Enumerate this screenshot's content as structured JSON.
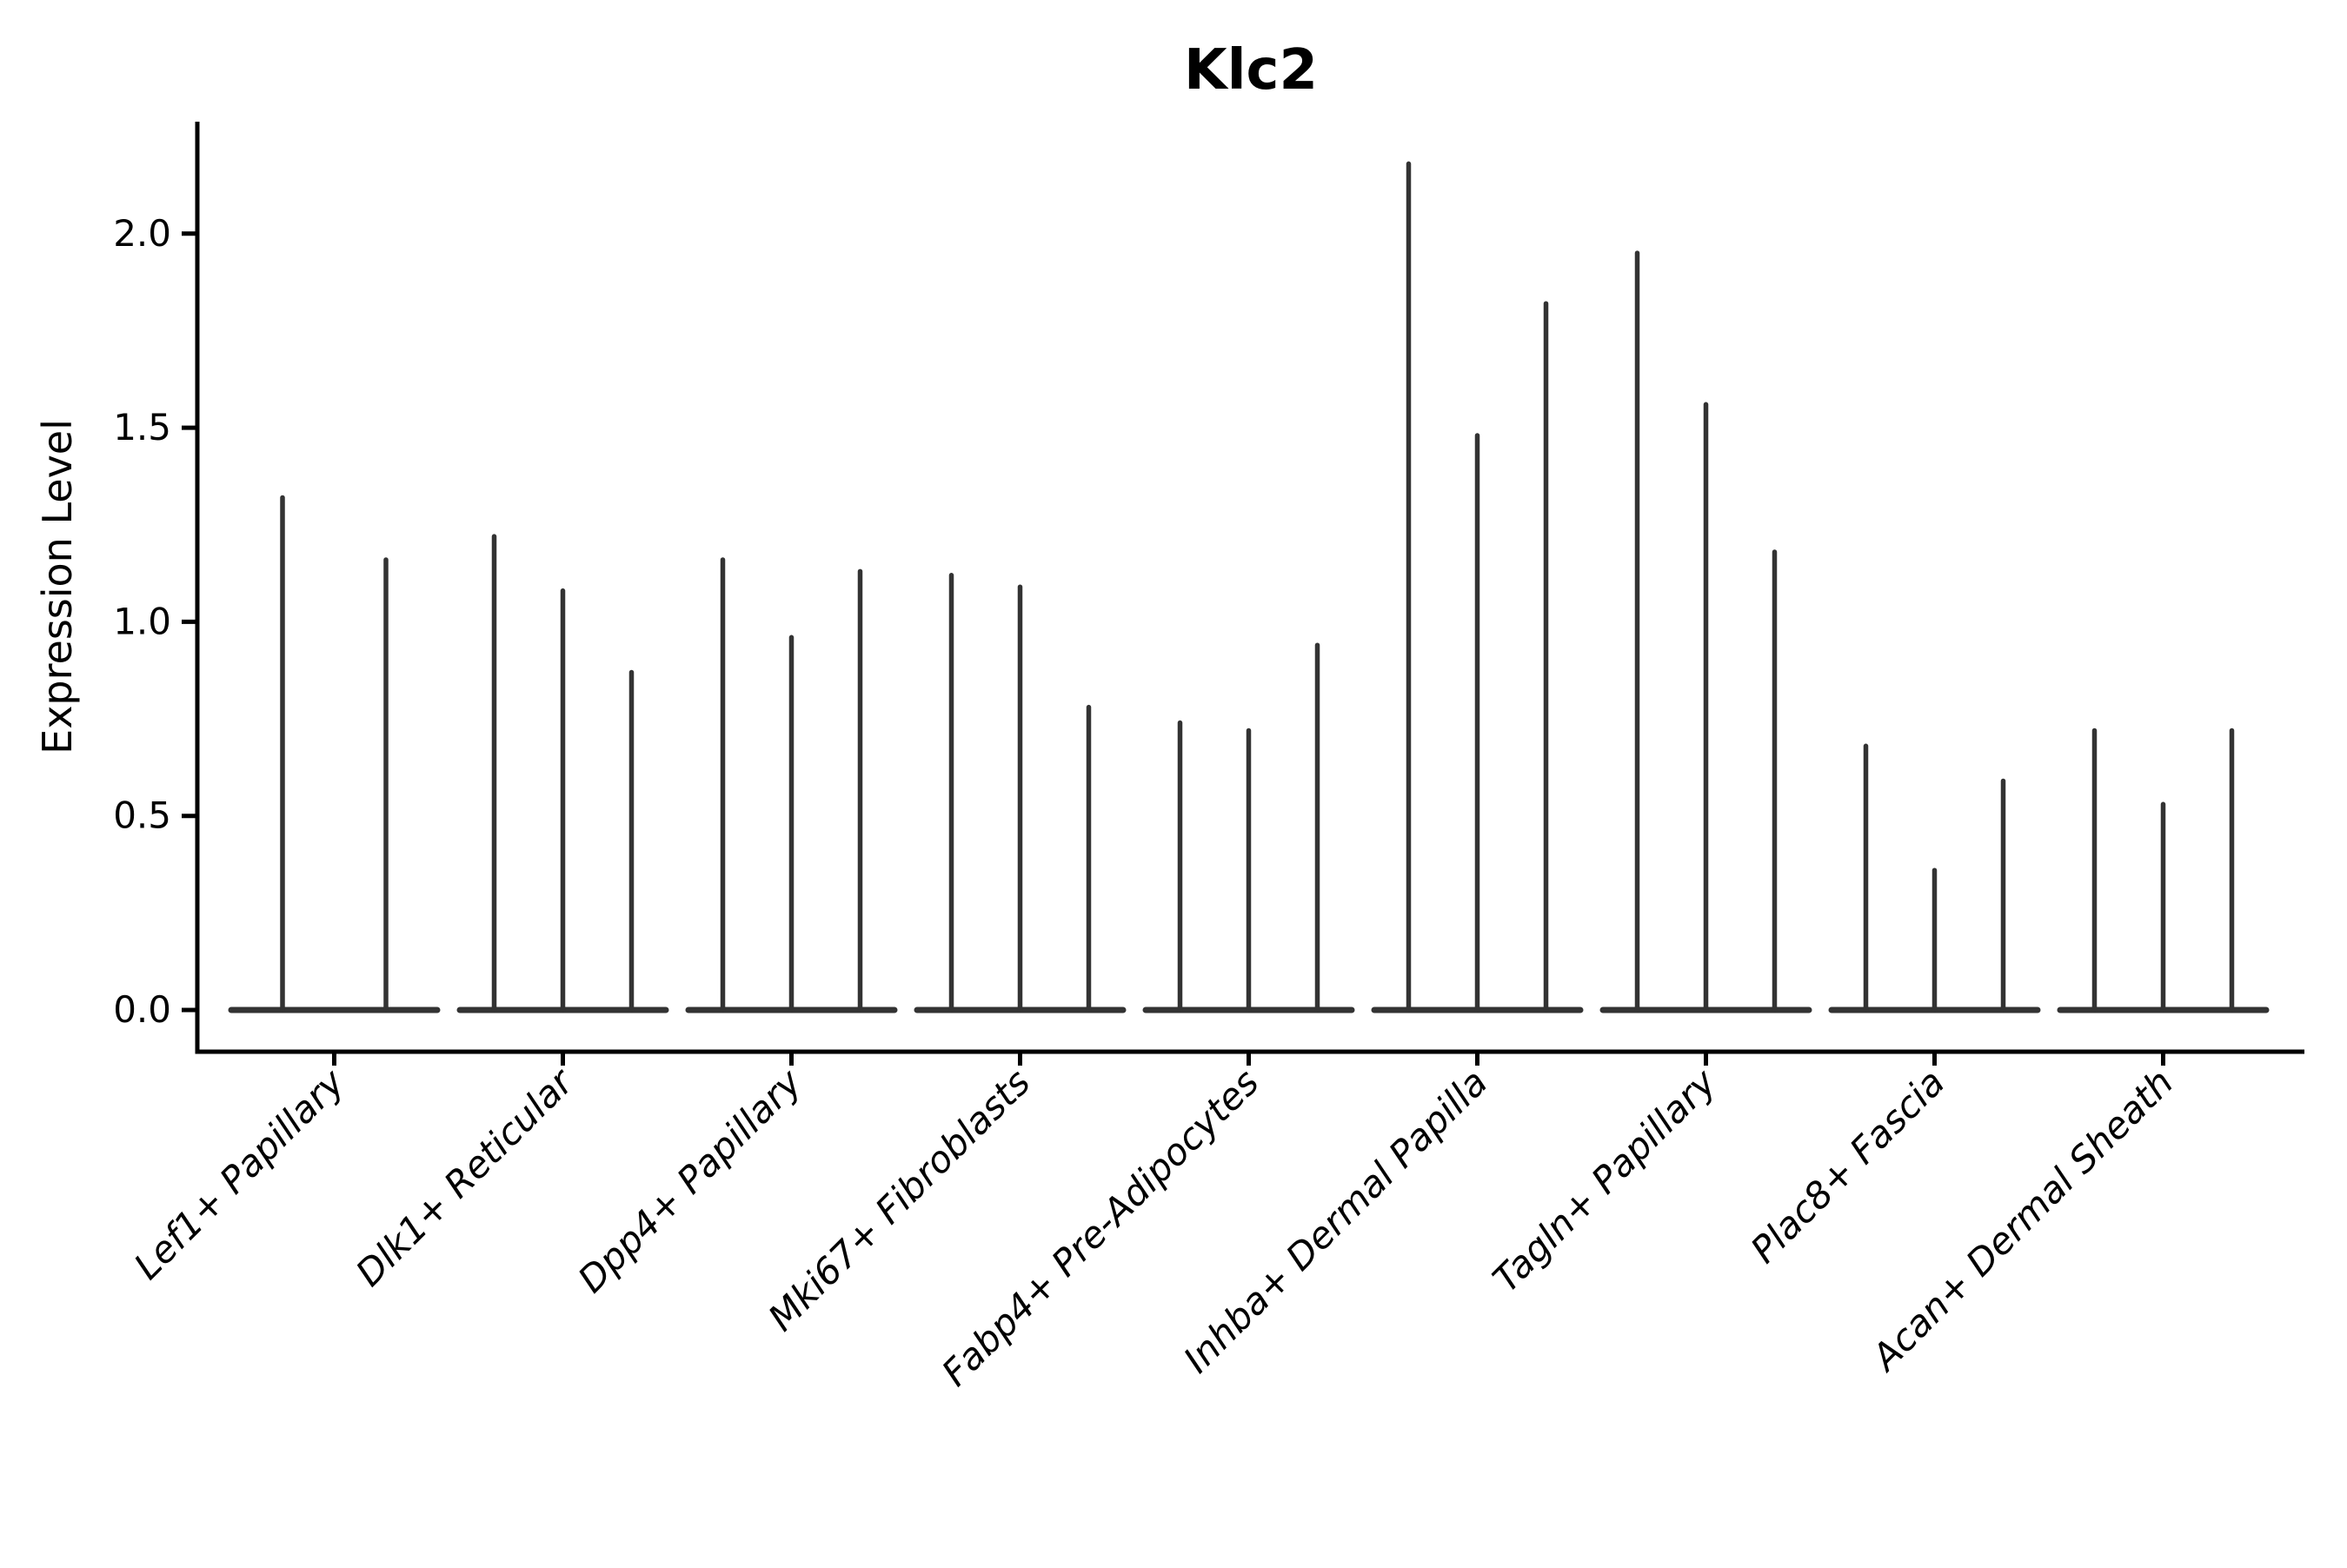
{
  "title": "Klc2",
  "chart_data": {
    "type": "violin",
    "render_style": "spike-violin (sparse expression: flat body at 0 with thin spike to max)",
    "title": "Klc2",
    "xlabel": "",
    "ylabel": "Expression Level",
    "ylim": [
      -0.11,
      2.29
    ],
    "yticks": [
      0.0,
      0.5,
      1.0,
      1.5,
      2.0
    ],
    "ytick_labels": [
      "0.0",
      "0.5",
      "1.0",
      "1.5",
      "2.0"
    ],
    "grid": false,
    "legend": "none",
    "categories": [
      "Lef1+ Papillary",
      "Dlk1+ Reticular",
      "Dpp4+ Papillary",
      "Mki67+ Fibroblasts",
      "Fabp4+ Pre-Adipocytes",
      "Inhba+ Dermal Papilla",
      "Tagln+ Papillary",
      "Plac8+ Fascia",
      "Acan+ Dermal Sheath"
    ],
    "groups": [
      {
        "category": "Lef1+ Papillary",
        "spike_max_values": [
          1.32,
          1.16
        ]
      },
      {
        "category": "Dlk1+ Reticular",
        "spike_max_values": [
          1.22,
          1.08,
          0.87
        ]
      },
      {
        "category": "Dpp4+ Papillary",
        "spike_max_values": [
          1.16,
          0.96,
          1.13
        ]
      },
      {
        "category": "Mki67+ Fibroblasts",
        "spike_max_values": [
          1.12,
          1.09,
          0.78
        ]
      },
      {
        "category": "Fabp4+ Pre-Adipocytes",
        "spike_max_values": [
          0.74,
          0.72,
          0.94
        ]
      },
      {
        "category": "Inhba+ Dermal Papilla",
        "spike_max_values": [
          2.18,
          1.48,
          1.82
        ]
      },
      {
        "category": "Tagln+ Papillary",
        "spike_max_values": [
          1.95,
          1.56,
          1.18
        ]
      },
      {
        "category": "Plac8+ Fascia",
        "spike_max_values": [
          0.68,
          0.36,
          0.59
        ]
      },
      {
        "category": "Acan+ Dermal Sheath",
        "spike_max_values": [
          0.72,
          0.53,
          0.72
        ]
      }
    ],
    "colors": {
      "violin_stroke": "#333333",
      "axis": "#000000",
      "text": "#000000",
      "background": "#ffffff"
    }
  }
}
